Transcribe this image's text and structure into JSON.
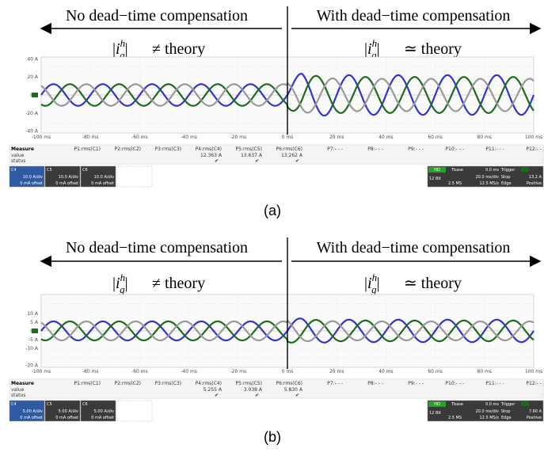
{
  "panels": [
    {
      "id": "a",
      "caption": "(a)",
      "left_label": "No dead−time compensation",
      "right_label": "With dead−time compensation",
      "left_eq_rel": "≠ theory",
      "right_eq_rel": "≃ theory",
      "measure": {
        "heading": "Measure",
        "row2": "value",
        "row3": "status",
        "params": [
          "P1:rms(C1)",
          "P2:rms(C2)",
          "P3:rms(C3)",
          "P4:rms(C4)",
          "P5:rms(C5)",
          "P6:rms(C6)",
          "P7:- - -",
          "P8:- - -",
          "P9:- - -",
          "P10:- - -",
          "P11:- - -",
          "P12:- - -"
        ],
        "values": [
          "",
          "",
          "",
          "12.363 A",
          "13.637 A",
          "13.262 A",
          "",
          "",
          "",
          "",
          "",
          ""
        ]
      },
      "channels": [
        {
          "tag": "C4",
          "scale": "10.0 A/div",
          "offset": "0 mA offset"
        },
        {
          "tag": "C5",
          "scale": "10.0 A/div",
          "offset": "0 mA offset"
        },
        {
          "tag": "C6",
          "scale": "10.0 A/div",
          "offset": "0 mA offset"
        }
      ],
      "timebase": {
        "hd": "HD",
        "tbase": "Tbase",
        "tbase_val": "0.0 ms",
        "trigger": "Trigger",
        "trig_val": "13.2 A",
        "bits": "12 Bit",
        "div": "20.0 ms/div",
        "stop": "Stop",
        "rate": "2.5 MS",
        "srate": "12.5 MS/s",
        "edge": "Edge",
        "pos": "Positive"
      },
      "chart_data": {
        "type": "line",
        "x": [
          -100,
          -80,
          -60,
          -40,
          -20,
          0,
          20,
          40,
          60,
          80,
          100
        ],
        "x_ticks": [
          "-100 ms",
          "-80 ms",
          "-60 ms",
          "-40 ms",
          "-20 ms",
          "0 ms",
          "20 ms",
          "40 ms",
          "60 ms",
          "80 ms",
          "100 ms"
        ],
        "y_ticks": [
          "40 A",
          "20 A",
          "0 A",
          "-20 A",
          "-40 A"
        ],
        "xlim": [
          -100,
          100
        ],
        "ylim": [
          -40,
          40
        ],
        "frequency_hz": 50,
        "series": [
          {
            "color": "#3333cc",
            "amp_before": 12,
            "amp_after": 22,
            "phase_deg": 0
          },
          {
            "color": "#1e6b1e",
            "amp_before": 12,
            "amp_after": 20,
            "phase_deg": -120
          },
          {
            "color": "#999999",
            "amp_before": 12,
            "amp_after": 18,
            "phase_deg": 120
          }
        ]
      }
    },
    {
      "id": "b",
      "caption": "(b)",
      "left_label": "No dead−time compensation",
      "right_label": "With dead−time compensation",
      "left_eq_rel": "≠ theory",
      "right_eq_rel": "≃ theory",
      "measure": {
        "heading": "Measure",
        "row2": "value",
        "row3": "status",
        "params": [
          "P1:rms(C1)",
          "P2:rms(C2)",
          "P3:rms(C3)",
          "P4:rms(C4)",
          "P5:rms(C5)",
          "P6:rms(C6)",
          "P7:- - -",
          "P8:- - -",
          "P9:- - -",
          "P10:- - -",
          "P11:- - -",
          "P12:- - -"
        ],
        "values": [
          "",
          "",
          "",
          "5.255 A",
          "3.938 A",
          "5.830 A",
          "",
          "",
          "",
          "",
          "",
          ""
        ]
      },
      "channels": [
        {
          "tag": "C4",
          "scale": "5.00 A/div",
          "offset": "0 mA offset"
        },
        {
          "tag": "C5",
          "scale": "5.00 A/div",
          "offset": "0 mA offset"
        },
        {
          "tag": "C6",
          "scale": "5.00 A/div",
          "offset": "0 mA offset"
        }
      ],
      "timebase": {
        "hd": "HD",
        "tbase": "Tbase",
        "tbase_val": "0.0 ms",
        "trigger": "Trigger",
        "trig_val": "7.60 A",
        "bits": "12 Bit",
        "div": "20.0 ms/div",
        "stop": "Stop",
        "rate": "2.5 MS",
        "srate": "12.5 MS/s",
        "edge": "Edge",
        "pos": "Positive"
      },
      "chart_data": {
        "type": "line",
        "x": [
          -100,
          -80,
          -60,
          -40,
          -20,
          0,
          20,
          40,
          60,
          80,
          100
        ],
        "x_ticks": [
          "-100 ms",
          "-80 ms",
          "-60 ms",
          "-40 ms",
          "-20 ms",
          "0 ms",
          "20 ms",
          "40 ms",
          "60 ms",
          "80 ms",
          "100 ms"
        ],
        "y_ticks": [
          "10 A",
          "5 A",
          "0 A",
          "-5 A",
          "-10 A",
          "-20 A"
        ],
        "xlim": [
          -100,
          100
        ],
        "ylim": [
          -20,
          20
        ],
        "frequency_hz": 50,
        "series": [
          {
            "color": "#3333cc",
            "amp_before": 5.5,
            "amp_after": 6.5,
            "phase_deg": 0
          },
          {
            "color": "#1e6b1e",
            "amp_before": 5.5,
            "amp_after": 6,
            "phase_deg": -120
          },
          {
            "color": "#999999",
            "amp_before": 5.5,
            "amp_after": 5.5,
            "phase_deg": 120
          }
        ]
      }
    }
  ]
}
